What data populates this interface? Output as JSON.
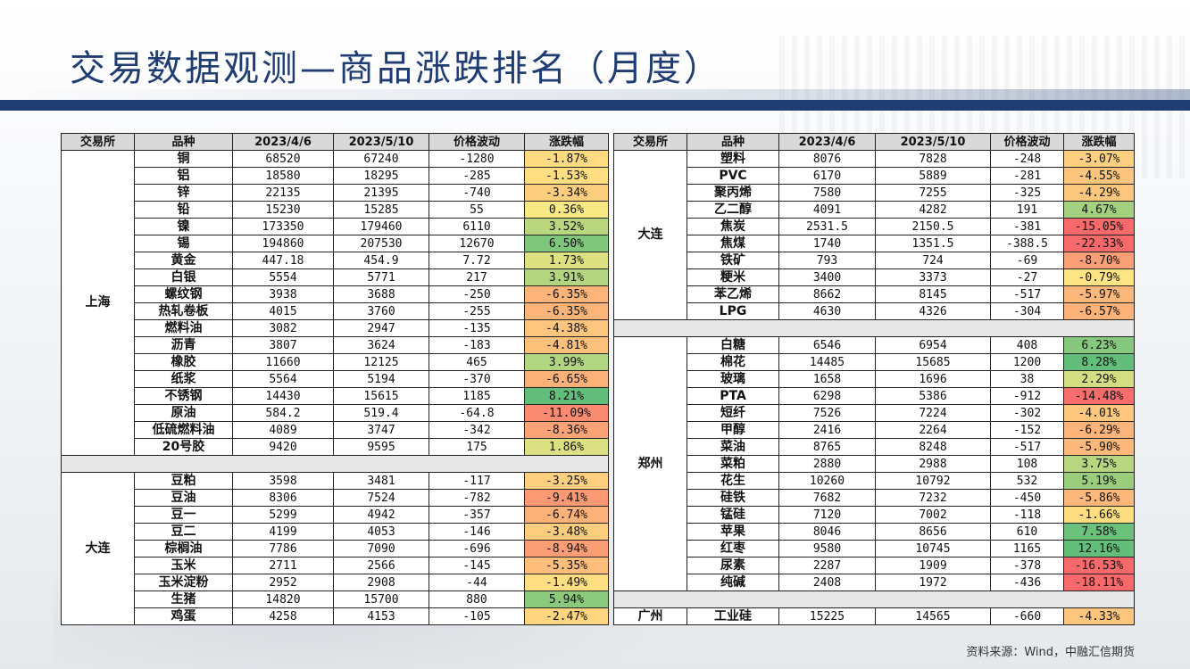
{
  "header": {
    "title": "交易数据观测—商品涨跌排名（月度）"
  },
  "table_headers": [
    "交易所",
    "品种",
    "2023/4/6",
    "2023/5/10",
    "价格波动",
    "涨跌幅"
  ],
  "colors": {
    "title": "#1f3c73",
    "header_bg": "#d9d9d9",
    "strong_up": "#63be7b",
    "strong_down": "#f8696b",
    "neutral": "#ffeb84"
  },
  "left_table": {
    "groups": [
      {
        "exchange": "上海",
        "rows": [
          {
            "name": "铜",
            "p1": "68520",
            "p2": "67240",
            "chg": "-1280",
            "pct": "-1.87%",
            "pct_value": -1.87
          },
          {
            "name": "铝",
            "p1": "18580",
            "p2": "18295",
            "chg": "-285",
            "pct": "-1.53%",
            "pct_value": -1.53
          },
          {
            "name": "锌",
            "p1": "22135",
            "p2": "21395",
            "chg": "-740",
            "pct": "-3.34%",
            "pct_value": -3.34
          },
          {
            "name": "铅",
            "p1": "15230",
            "p2": "15285",
            "chg": "55",
            "pct": "0.36%",
            "pct_value": 0.36
          },
          {
            "name": "镍",
            "p1": "173350",
            "p2": "179460",
            "chg": "6110",
            "pct": "3.52%",
            "pct_value": 3.52
          },
          {
            "name": "锡",
            "p1": "194860",
            "p2": "207530",
            "chg": "12670",
            "pct": "6.50%",
            "pct_value": 6.5
          },
          {
            "name": "黄金",
            "p1": "447.18",
            "p2": "454.9",
            "chg": "7.72",
            "pct": "1.73%",
            "pct_value": 1.73
          },
          {
            "name": "白银",
            "p1": "5554",
            "p2": "5771",
            "chg": "217",
            "pct": "3.91%",
            "pct_value": 3.91
          },
          {
            "name": "螺纹钢",
            "p1": "3938",
            "p2": "3688",
            "chg": "-250",
            "pct": "-6.35%",
            "pct_value": -6.35
          },
          {
            "name": "热轧卷板",
            "p1": "4015",
            "p2": "3760",
            "chg": "-255",
            "pct": "-6.35%",
            "pct_value": -6.35
          },
          {
            "name": "燃料油",
            "p1": "3082",
            "p2": "2947",
            "chg": "-135",
            "pct": "-4.38%",
            "pct_value": -4.38
          },
          {
            "name": "沥青",
            "p1": "3807",
            "p2": "3624",
            "chg": "-183",
            "pct": "-4.81%",
            "pct_value": -4.81
          },
          {
            "name": "橡胶",
            "p1": "11660",
            "p2": "12125",
            "chg": "465",
            "pct": "3.99%",
            "pct_value": 3.99
          },
          {
            "name": "纸浆",
            "p1": "5564",
            "p2": "5194",
            "chg": "-370",
            "pct": "-6.65%",
            "pct_value": -6.65
          },
          {
            "name": "不锈钢",
            "p1": "14430",
            "p2": "15615",
            "chg": "1185",
            "pct": "8.21%",
            "pct_value": 8.21
          },
          {
            "name": "原油",
            "p1": "584.2",
            "p2": "519.4",
            "chg": "-64.8",
            "pct": "-11.09%",
            "pct_value": -11.09
          },
          {
            "name": "低硫燃料油",
            "p1": "4089",
            "p2": "3747",
            "chg": "-342",
            "pct": "-8.36%",
            "pct_value": -8.36
          },
          {
            "name": "20号胶",
            "p1": "9420",
            "p2": "9595",
            "chg": "175",
            "pct": "1.86%",
            "pct_value": 1.86
          }
        ]
      },
      {
        "exchange": "大连",
        "rows": [
          {
            "name": "豆粕",
            "p1": "3598",
            "p2": "3481",
            "chg": "-117",
            "pct": "-3.25%",
            "pct_value": -3.25
          },
          {
            "name": "豆油",
            "p1": "8306",
            "p2": "7524",
            "chg": "-782",
            "pct": "-9.41%",
            "pct_value": -9.41
          },
          {
            "name": "豆一",
            "p1": "5299",
            "p2": "4942",
            "chg": "-357",
            "pct": "-6.74%",
            "pct_value": -6.74
          },
          {
            "name": "豆二",
            "p1": "4199",
            "p2": "4053",
            "chg": "-146",
            "pct": "-3.48%",
            "pct_value": -3.48
          },
          {
            "name": "棕榈油",
            "p1": "7786",
            "p2": "7090",
            "chg": "-696",
            "pct": "-8.94%",
            "pct_value": -8.94
          },
          {
            "name": "玉米",
            "p1": "2711",
            "p2": "2566",
            "chg": "-145",
            "pct": "-5.35%",
            "pct_value": -5.35
          },
          {
            "name": "玉米淀粉",
            "p1": "2952",
            "p2": "2908",
            "chg": "-44",
            "pct": "-1.49%",
            "pct_value": -1.49
          },
          {
            "name": "生猪",
            "p1": "14820",
            "p2": "15700",
            "chg": "880",
            "pct": "5.94%",
            "pct_value": 5.94
          },
          {
            "name": "鸡蛋",
            "p1": "4258",
            "p2": "4153",
            "chg": "-105",
            "pct": "-2.47%",
            "pct_value": -2.47
          }
        ]
      }
    ]
  },
  "right_table": {
    "groups": [
      {
        "exchange": "大连",
        "rows": [
          {
            "name": "塑料",
            "p1": "8076",
            "p2": "7828",
            "chg": "-248",
            "pct": "-3.07%",
            "pct_value": -3.07
          },
          {
            "name": "PVC",
            "p1": "6170",
            "p2": "5889",
            "chg": "-281",
            "pct": "-4.55%",
            "pct_value": -4.55
          },
          {
            "name": "聚丙烯",
            "p1": "7580",
            "p2": "7255",
            "chg": "-325",
            "pct": "-4.29%",
            "pct_value": -4.29
          },
          {
            "name": "乙二醇",
            "p1": "4091",
            "p2": "4282",
            "chg": "191",
            "pct": "4.67%",
            "pct_value": 4.67
          },
          {
            "name": "焦炭",
            "p1": "2531.5",
            "p2": "2150.5",
            "chg": "-381",
            "pct": "-15.05%",
            "pct_value": -15.05
          },
          {
            "name": "焦煤",
            "p1": "1740",
            "p2": "1351.5",
            "chg": "-388.5",
            "pct": "-22.33%",
            "pct_value": -22.33
          },
          {
            "name": "铁矿",
            "p1": "793",
            "p2": "724",
            "chg": "-69",
            "pct": "-8.70%",
            "pct_value": -8.7
          },
          {
            "name": "粳米",
            "p1": "3400",
            "p2": "3373",
            "chg": "-27",
            "pct": "-0.79%",
            "pct_value": -0.79
          },
          {
            "name": "苯乙烯",
            "p1": "8662",
            "p2": "8145",
            "chg": "-517",
            "pct": "-5.97%",
            "pct_value": -5.97
          },
          {
            "name": "LPG",
            "p1": "4630",
            "p2": "4326",
            "chg": "-304",
            "pct": "-6.57%",
            "pct_value": -6.57
          }
        ]
      },
      {
        "exchange": "郑州",
        "rows": [
          {
            "name": "白糖",
            "p1": "6546",
            "p2": "6954",
            "chg": "408",
            "pct": "6.23%",
            "pct_value": 6.23
          },
          {
            "name": "棉花",
            "p1": "14485",
            "p2": "15685",
            "chg": "1200",
            "pct": "8.28%",
            "pct_value": 8.28
          },
          {
            "name": "玻璃",
            "p1": "1658",
            "p2": "1696",
            "chg": "38",
            "pct": "2.29%",
            "pct_value": 2.29
          },
          {
            "name": "PTA",
            "p1": "6298",
            "p2": "5386",
            "chg": "-912",
            "pct": "-14.48%",
            "pct_value": -14.48
          },
          {
            "name": "短纤",
            "p1": "7526",
            "p2": "7224",
            "chg": "-302",
            "pct": "-4.01%",
            "pct_value": -4.01
          },
          {
            "name": "甲醇",
            "p1": "2416",
            "p2": "2264",
            "chg": "-152",
            "pct": "-6.29%",
            "pct_value": -6.29
          },
          {
            "name": "菜油",
            "p1": "8765",
            "p2": "8248",
            "chg": "-517",
            "pct": "-5.90%",
            "pct_value": -5.9
          },
          {
            "name": "菜粕",
            "p1": "2880",
            "p2": "2988",
            "chg": "108",
            "pct": "3.75%",
            "pct_value": 3.75
          },
          {
            "name": "花生",
            "p1": "10260",
            "p2": "10792",
            "chg": "532",
            "pct": "5.19%",
            "pct_value": 5.19
          },
          {
            "name": "硅铁",
            "p1": "7682",
            "p2": "7232",
            "chg": "-450",
            "pct": "-5.86%",
            "pct_value": -5.86
          },
          {
            "name": "锰硅",
            "p1": "7120",
            "p2": "7002",
            "chg": "-118",
            "pct": "-1.66%",
            "pct_value": -1.66
          },
          {
            "name": "苹果",
            "p1": "8046",
            "p2": "8656",
            "chg": "610",
            "pct": "7.58%",
            "pct_value": 7.58
          },
          {
            "name": "红枣",
            "p1": "9580",
            "p2": "10745",
            "chg": "1165",
            "pct": "12.16%",
            "pct_value": 12.16
          },
          {
            "name": "尿素",
            "p1": "2287",
            "p2": "1909",
            "chg": "-378",
            "pct": "-16.53%",
            "pct_value": -16.53
          },
          {
            "name": "纯碱",
            "p1": "2408",
            "p2": "1972",
            "chg": "-436",
            "pct": "-18.11%",
            "pct_value": -18.11
          }
        ]
      },
      {
        "exchange": "广州",
        "rows": [
          {
            "name": "工业硅",
            "p1": "15225",
            "p2": "14565",
            "chg": "-660",
            "pct": "-4.33%",
            "pct_value": -4.33
          }
        ]
      }
    ]
  },
  "footer": {
    "source": "资料来源：Wind，中融汇信期货"
  }
}
